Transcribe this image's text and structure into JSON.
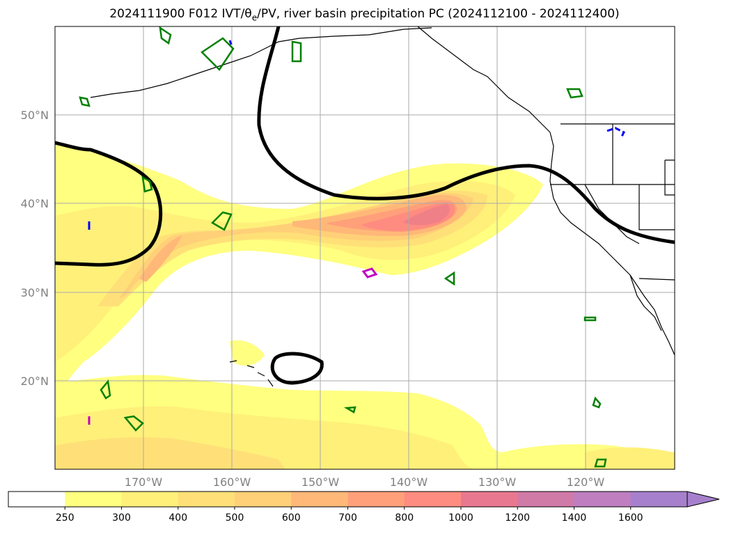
{
  "title": {
    "text": "2024111900 F012 IVT/θe/PV, river basin precipitation PC (2024112100 - 2024112400)"
  },
  "map": {
    "lat_labels": [
      "50°N",
      "40°N",
      "30°N",
      "20°N"
    ],
    "lon_labels": [
      "170°W",
      "160°W",
      "150°W",
      "140°W",
      "130°W",
      "120°W"
    ],
    "land_color": "#ffffff",
    "ocean_color": "#ffffff",
    "gridline_color": "#aaaaaa",
    "contour_colors": {
      "theta_e": "#000000",
      "pv": "#008000",
      "pos": "#0000ff",
      "precip": "#c000c0"
    }
  },
  "colorbar": {
    "levels": [
      "250",
      "300",
      "400",
      "500",
      "600",
      "700",
      "800",
      "1000",
      "1200",
      "1400",
      "1600"
    ],
    "colors": [
      "#ffffff",
      "#ffff80",
      "#fff07a",
      "#ffe078",
      "#ffd078",
      "#ffb878",
      "#ffa07a",
      "#ff8c80",
      "#e87890",
      "#d07aa8",
      "#be7ec0",
      "#a680cc"
    ],
    "extend": "max"
  }
}
